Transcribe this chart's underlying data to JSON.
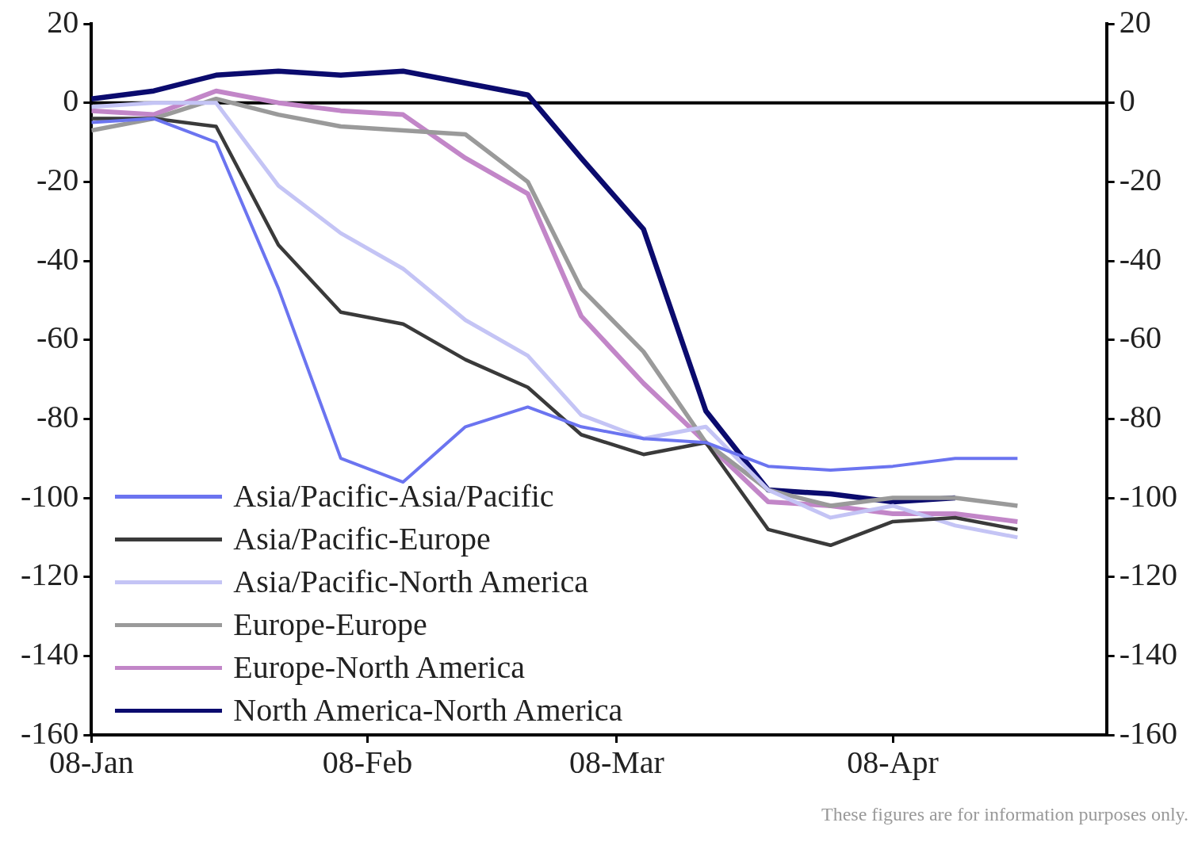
{
  "chart_data": {
    "type": "line",
    "x": [
      "--01-08",
      "--01-15",
      "--01-22",
      "--01-29",
      "--02-05",
      "--02-12",
      "--02-19",
      "--02-26",
      "--03-04",
      "--03-11",
      "--03-18",
      "--03-25",
      "--04-01",
      "--04-08",
      "--04-15",
      "--04-22"
    ],
    "series": [
      {
        "name": "Asia/Pacific-Asia/Pacific",
        "color": "#6b74f0",
        "values": [
          -5,
          -4,
          -10,
          -47,
          -90,
          -96,
          -82,
          -77,
          -82,
          -85,
          -86,
          -92,
          -93,
          -92,
          -90,
          -90
        ]
      },
      {
        "name": "Asia/Pacific-Europe",
        "color": "#3a3a3a",
        "values": [
          -4,
          -4,
          -6,
          -36,
          -53,
          -56,
          -65,
          -72,
          -84,
          -89,
          -86,
          -108,
          -112,
          -106,
          -105,
          -108
        ]
      },
      {
        "name": "Asia/Pacific-North America",
        "color": "#c4c4f5",
        "values": [
          -1,
          0,
          0,
          -21,
          -33,
          -42,
          -55,
          -64,
          -79,
          -85,
          -82,
          -98,
          -105,
          -102,
          -107,
          -110
        ]
      },
      {
        "name": "Europe-Europe",
        "color": "#9a9a9a",
        "values": [
          -7,
          -4,
          1,
          -3,
          -6,
          -7,
          -8,
          -20,
          -47,
          -63,
          -86,
          -98,
          -102,
          -100,
          -100,
          -102
        ]
      },
      {
        "name": "Europe-North America",
        "color": "#c286c8",
        "values": [
          -2,
          -3,
          3,
          0,
          -2,
          -3,
          -14,
          -23,
          -54,
          -71,
          -86,
          -101,
          -102,
          -104,
          -104,
          -106
        ]
      },
      {
        "name": "North America-North America",
        "color": "#0b0b6e",
        "values": [
          1,
          3,
          7,
          8,
          7,
          8,
          5,
          2,
          -14,
          -32,
          -78,
          -98,
          -99,
          -101,
          -100,
          null
        ]
      }
    ],
    "xlim": [
      "--01-08",
      "--05-02"
    ],
    "xticks": [
      {
        "value": "--01-08",
        "label": "08-Jan"
      },
      {
        "value": "--02-08",
        "label": "08-Feb"
      },
      {
        "value": "--03-08",
        "label": "08-Mar"
      },
      {
        "value": "--04-08",
        "label": "08-Apr"
      }
    ],
    "ylim": [
      -160,
      20
    ],
    "yticks": [
      -160,
      -140,
      -120,
      -100,
      -80,
      -60,
      -40,
      -20,
      0,
      20
    ],
    "y2lim": [
      -160,
      20
    ],
    "y2ticks": [
      -160,
      -140,
      -120,
      -100,
      -80,
      -60,
      -40,
      -20,
      0,
      20
    ],
    "ref_lines": [
      {
        "axis": "y",
        "value": 0,
        "color": "#000000"
      }
    ],
    "grid": false,
    "legend": "bottom left",
    "marker": "none",
    "line_style": "solid",
    "annotations": [
      "These figures are for information purposes only."
    ]
  }
}
